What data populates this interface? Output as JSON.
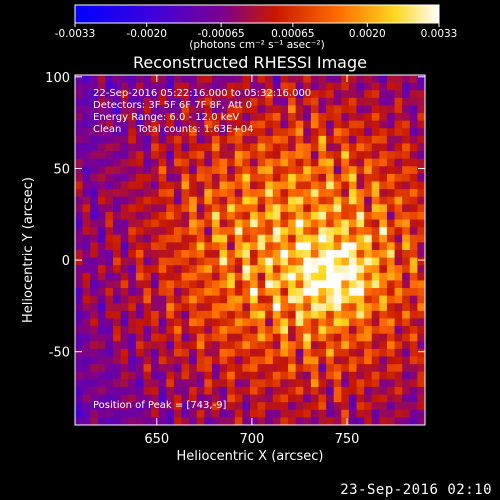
{
  "chart_data": {
    "type": "heatmap",
    "title": "Reconstructed RHESSI Image",
    "xlabel": "Heliocentric X (arcsec)",
    "ylabel": "Heliocentric Y (arcsec)",
    "xlim": [
      607,
      791
    ],
    "ylim": [
      -90,
      101
    ],
    "x_ticks": [
      650,
      700,
      750
    ],
    "y_ticks": [
      -50,
      0,
      50,
      100
    ],
    "colorbar": {
      "ticks": [
        "-0.0033",
        "-0.0020",
        "-0.00065",
        "0.00065",
        "0.0020",
        "0.0033"
      ],
      "tick_values": [
        -0.0033,
        -0.002,
        -0.00065,
        0.00065,
        0.002,
        0.0033
      ],
      "unit_label": "(photons cm⁻² s⁻¹ asec⁻²)",
      "range": [
        -0.0033,
        0.0033
      ],
      "colors": [
        "#0000ff",
        "#3000ff",
        "#8000a0",
        "#d01000",
        "#ff7000",
        "#ffff40",
        "#ffffff"
      ]
    },
    "annotations": [
      "22-Sep-2016 05:22:16.000 to 05:32:16.000",
      "Detectors: 3F 5F 6F 7F 8F, Att 0",
      "Energy Range: 6.0 - 12.0 keV",
      "Clean     Total counts: 1.63E+04"
    ],
    "peak_label": "Position of Peak = [743,-9]",
    "peak": {
      "x": 743,
      "y": -9,
      "value": 0.0033
    },
    "source_center": {
      "x": 725,
      "y": 5
    },
    "grid": false
  },
  "footer_date": "23-Sep-2016 02:10"
}
